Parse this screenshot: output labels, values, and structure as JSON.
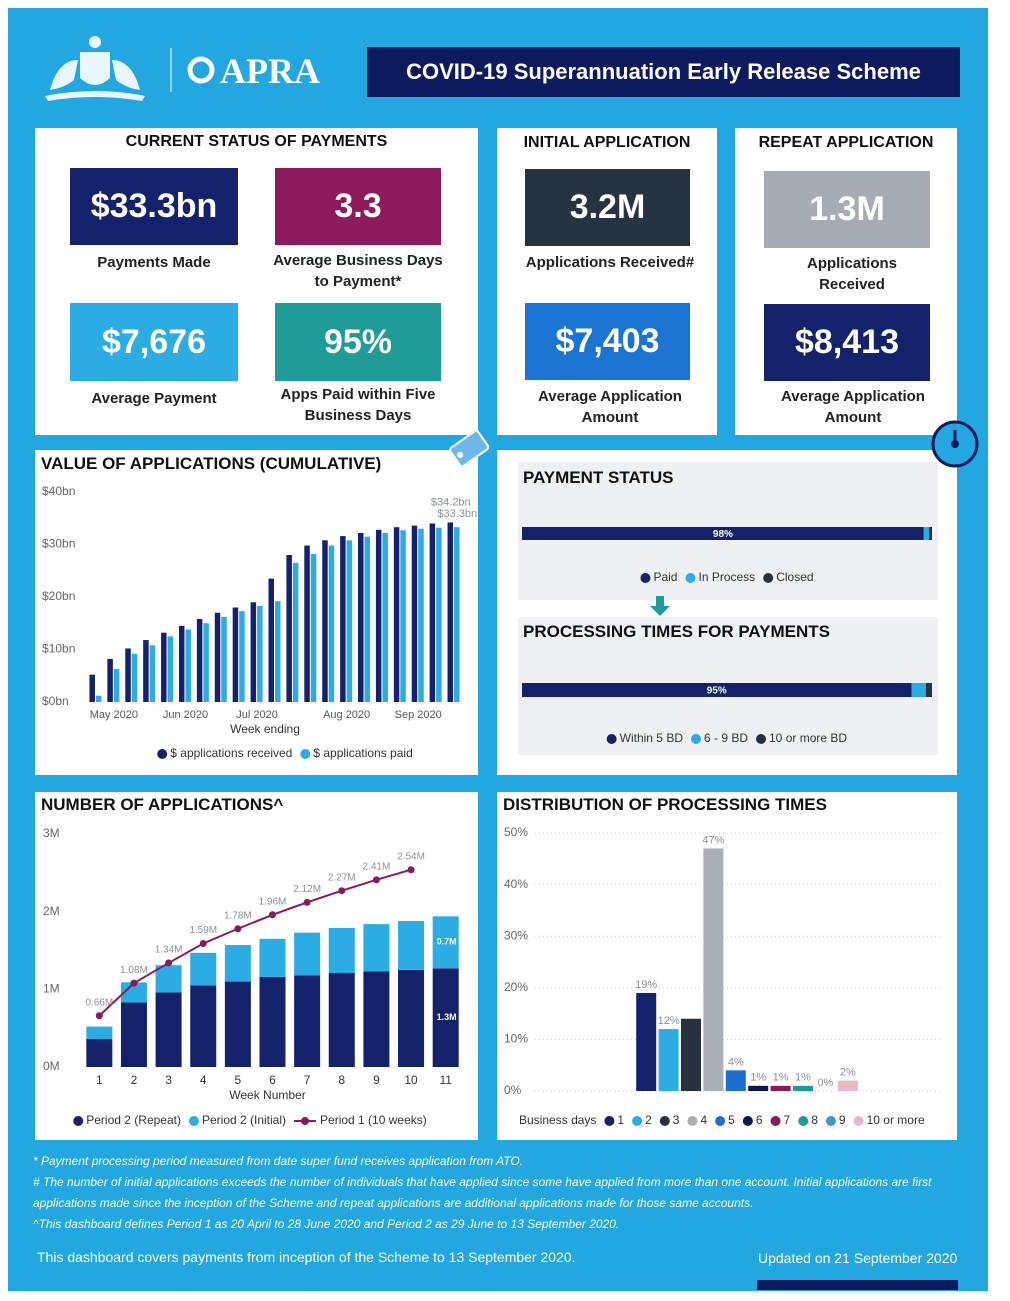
{
  "header": {
    "logo": "APRA",
    "title": "COVID-19 Superannuation Early Release Scheme"
  },
  "current_status": {
    "title": "CURRENT STATUS OF PAYMENTS",
    "cards": [
      {
        "value": "$33.3bn",
        "label": "Payments Made"
      },
      {
        "value": "3.3",
        "label": "Average Business Days to Payment*"
      },
      {
        "value": "$7,676",
        "label": "Average Payment"
      },
      {
        "value": "95%",
        "label": "Apps Paid within Five Business Days"
      }
    ]
  },
  "initial_application": {
    "title": "INITIAL APPLICATION",
    "cards": [
      {
        "value": "3.2M",
        "label": "Applications Received#"
      },
      {
        "value": "$7,403",
        "label": "Average Application Amount"
      }
    ]
  },
  "repeat_application": {
    "title": "REPEAT APPLICATION",
    "cards": [
      {
        "value": "1.3M",
        "label": "Applications Received"
      },
      {
        "value": "$8,413",
        "label": "Average Application Amount"
      }
    ]
  },
  "chart_data": [
    {
      "type": "bar",
      "title": "VALUE OF APPLICATIONS (CUMULATIVE)",
      "x_label": "Week ending",
      "categories": [
        null,
        "May 2020",
        null,
        null,
        null,
        "Jun 2020",
        null,
        null,
        null,
        "Jul 2020",
        null,
        null,
        null,
        null,
        "Aug 2020",
        null,
        null,
        null,
        "Sep 2020",
        null,
        null
      ],
      "ylim": [
        0,
        40
      ],
      "yticks": [
        {
          "value": 0,
          "label": "$0bn"
        },
        {
          "value": 10,
          "label": "$10bn"
        },
        {
          "value": 20,
          "label": "$20bn"
        },
        {
          "value": 30,
          "label": "$30bn"
        },
        {
          "value": 40,
          "label": "$40bn"
        }
      ],
      "grid": false,
      "legend": "bottom",
      "series": [
        {
          "name": "$ applications received",
          "color": "#13226b",
          "values": [
            5.2,
            8.2,
            10.2,
            11.8,
            13.2,
            14.5,
            15.8,
            17,
            18,
            19,
            23.5,
            28,
            29.8,
            30.8,
            31.6,
            32.2,
            32.8,
            33.3,
            33.6,
            34.0,
            34.2
          ],
          "value_labels": [
            null,
            null,
            null,
            null,
            null,
            null,
            null,
            null,
            null,
            null,
            null,
            null,
            null,
            null,
            null,
            null,
            null,
            null,
            null,
            null,
            "$34.2bn"
          ]
        },
        {
          "name": "$ applications paid",
          "color": "#2bace2",
          "values": [
            1.2,
            6.3,
            9.2,
            10.8,
            12.5,
            13.8,
            15,
            16.2,
            17.3,
            18.3,
            19.2,
            26.5,
            28.2,
            29.8,
            30.8,
            31.5,
            32.2,
            32.7,
            33.0,
            33.2,
            33.3
          ],
          "value_labels": [
            null,
            null,
            null,
            null,
            null,
            null,
            null,
            null,
            null,
            null,
            null,
            null,
            null,
            null,
            null,
            null,
            null,
            null,
            null,
            null,
            "$33.3bn"
          ]
        }
      ]
    },
    {
      "type": "hbar",
      "title": "PAYMENT STATUS",
      "categories": [
        "Paid",
        "In Process",
        "Closed"
      ],
      "values": [
        98,
        1.3,
        0.7
      ],
      "value_labels": [
        "98%",
        null,
        null
      ],
      "colors": [
        "#13226b",
        "#2bace2",
        "#26323f"
      ],
      "xlim": [
        0,
        100
      ],
      "legend": "bottom"
    },
    {
      "type": "hbar",
      "title": "PROCESSING TIMES FOR PAYMENTS",
      "categories": [
        "Within 5 BD",
        "6 - 9 BD",
        "10 or more BD"
      ],
      "values": [
        95,
        3.5,
        1.5
      ],
      "value_labels": [
        "95%",
        null,
        null
      ],
      "colors": [
        "#13226b",
        "#2bace2",
        "#26323f"
      ],
      "xlim": [
        0,
        100
      ],
      "legend": "bottom"
    },
    {
      "type": "combo",
      "title": "NUMBER OF APPLICATIONS^",
      "x_label": "Week Number",
      "categories": [
        1,
        2,
        3,
        4,
        5,
        6,
        7,
        8,
        9,
        10,
        11
      ],
      "ylim": [
        0,
        3
      ],
      "yticks": [
        {
          "value": 0,
          "label": "0M"
        },
        {
          "value": 1,
          "label": "1M"
        },
        {
          "value": 2,
          "label": "2M"
        },
        {
          "value": 3,
          "label": "3M"
        }
      ],
      "grid": false,
      "legend": "bottom",
      "series": [
        {
          "name": "Period 2 (Repeat)",
          "kind": "bar",
          "color": "#13226b",
          "values": [
            0.36,
            0.83,
            0.96,
            1.05,
            1.1,
            1.16,
            1.18,
            1.21,
            1.23,
            1.25,
            1.27
          ],
          "value_labels": [
            null,
            null,
            null,
            null,
            null,
            null,
            null,
            null,
            null,
            null,
            "1.3M"
          ]
        },
        {
          "name": "Period 2 (Initial)",
          "kind": "bar",
          "color": "#2bace2",
          "values": [
            0.16,
            0.26,
            0.35,
            0.42,
            0.47,
            0.49,
            0.55,
            0.58,
            0.61,
            0.63,
            0.67
          ],
          "value_labels": [
            null,
            null,
            null,
            null,
            null,
            null,
            null,
            null,
            null,
            null,
            "0.7M"
          ]
        },
        {
          "name": "Period 1 (10 weeks)",
          "kind": "line",
          "color": "#8b1a5a",
          "values": [
            0.66,
            1.08,
            1.34,
            1.59,
            1.78,
            1.96,
            2.12,
            2.27,
            2.41,
            2.54,
            null
          ],
          "value_labels": [
            "0.66M",
            "1.08M",
            "1.34M",
            "1.59M",
            "1.78M",
            "1.96M",
            "2.12M",
            "2.27M",
            "2.41M",
            "2.54M",
            null
          ]
        }
      ]
    },
    {
      "type": "bar",
      "title": "DISTRIBUTION OF PROCESSING TIMES",
      "legend_title": "Business days",
      "categories": [
        "1",
        "2",
        "3",
        "4",
        "5",
        "6",
        "7",
        "8",
        "9",
        "10 or more"
      ],
      "values": [
        19,
        12,
        14,
        47,
        4,
        1,
        1,
        1,
        0,
        2
      ],
      "value_labels": [
        "19%",
        "12%",
        null,
        "47%",
        "4%",
        "1%",
        "1%",
        "1%",
        "0%",
        "2%"
      ],
      "colors": [
        "#13226b",
        "#2bace2",
        "#26323f",
        "#a9aeb8",
        "#1b6fd0",
        "#0b1750",
        "#8b1a5a",
        "#1f9b98",
        "#3a9bbf",
        "#e8b9c3"
      ],
      "ylim": [
        0,
        50
      ],
      "yticks": [
        {
          "value": 0,
          "label": "0%"
        },
        {
          "value": 10,
          "label": "10%"
        },
        {
          "value": 20,
          "label": "20%"
        },
        {
          "value": 30,
          "label": "30%"
        },
        {
          "value": 40,
          "label": "40%"
        },
        {
          "value": 50,
          "label": "50%"
        }
      ],
      "grid": true,
      "legend": "bottom"
    }
  ],
  "footnotes": [
    "* Payment processing period measured from date super fund receives application from ATO.",
    "# The number of initial applications exceeds the number of individuals that have applied since some have applied from more than one account. Initial applications are first applications made since the inception of the Scheme and repeat applications are additional applications made for those same accounts.",
    "^This dashboard defines Period 1 as 20 April to 28 June 2020 and Period 2 as 29 June to 13 September 2020."
  ],
  "footer": {
    "coverage": "This dashboard covers payments from inception of the Scheme to 13 September 2020.",
    "updated": "Updated on 21 September 2020"
  }
}
